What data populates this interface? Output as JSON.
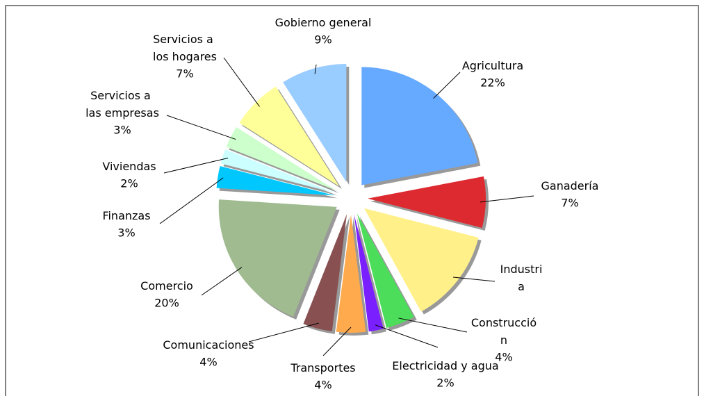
{
  "chart_data": {
    "type": "pie",
    "categories": [
      "Agricultura",
      "Ganadería",
      "Industria",
      "Construcción",
      "Electricidad y agua",
      "Transportes",
      "Comunicaciones",
      "Comercio",
      "Finanzas",
      "Viviendas",
      "Servicios a las empresas",
      "Servicios a los hogares",
      "Gobierno general"
    ],
    "values": [
      22,
      7,
      13,
      4,
      2,
      4,
      4,
      20,
      3,
      2,
      3,
      7,
      9
    ],
    "value_labels": [
      "22%",
      "7%",
      null,
      "4%",
      "2%",
      "4%",
      "4%",
      "20%",
      "3%",
      "2%",
      "3%",
      "7%",
      "9%"
    ],
    "colors": [
      "#66aaff",
      "#dd2a30",
      "#fff08a",
      "#4cdd5a",
      "#7a1fff",
      "#ffaa4c",
      "#885050",
      "#a0bb90",
      "#00c8ff",
      "#ccffff",
      "#ccffcc",
      "#ffff99",
      "#99ccff"
    ]
  }
}
